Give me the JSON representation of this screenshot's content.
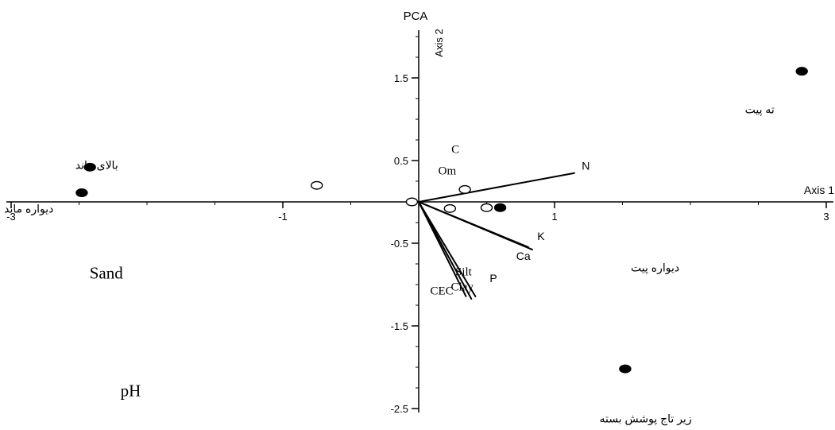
{
  "chart_data": {
    "type": "scatter",
    "title": "PCA",
    "xlabel": "Axis 1",
    "ylabel": "Axis 2",
    "xlim": [
      -3.1,
      3.05
    ],
    "ylim": [
      -2.6,
      2.05
    ],
    "x_ticks": [
      {
        "value": -3,
        "label": "-3"
      },
      {
        "value": -1,
        "label": "-1"
      },
      {
        "value": 1,
        "label": "1"
      },
      {
        "value": 3,
        "label": "3"
      }
    ],
    "y_ticks": [
      {
        "value": 1.5,
        "label": "1.5"
      },
      {
        "value": 0.5,
        "label": "0.5"
      },
      {
        "value": -0.5,
        "label": "-0.5"
      },
      {
        "value": -1.5,
        "label": "-1.5"
      },
      {
        "value": -2.5,
        "label": "-2.5"
      }
    ],
    "series": [
      {
        "marker": "filled",
        "points": [
          {
            "x": -2.42,
            "y": 0.42
          },
          {
            "x": -2.48,
            "y": 0.11
          },
          {
            "x": 2.82,
            "y": 1.58
          },
          {
            "x": 0.6,
            "y": -0.07
          },
          {
            "x": 1.52,
            "y": -2.02
          }
        ]
      },
      {
        "marker": "open",
        "points": [
          {
            "x": -0.75,
            "y": 0.2
          },
          {
            "x": -0.05,
            "y": 0.0
          },
          {
            "x": 0.34,
            "y": 0.15
          },
          {
            "x": 0.23,
            "y": -0.08
          },
          {
            "x": 0.5,
            "y": -0.07
          }
        ]
      }
    ],
    "vectors": [
      {
        "x": 1.15,
        "y": 0.35
      },
      {
        "x": 0.81,
        "y": -0.55
      },
      {
        "x": 0.84,
        "y": -0.58
      },
      {
        "x": 0.39,
        "y": -1.18
      },
      {
        "x": 0.35,
        "y": -1.15
      },
      {
        "x": 0.42,
        "y": -1.15
      }
    ],
    "variable_labels": [
      {
        "text": "N",
        "x": 1.23,
        "y": 0.39,
        "font": "sans"
      },
      {
        "text": "K",
        "x": 0.9,
        "y": -0.46,
        "font": "sans"
      },
      {
        "text": "Ca",
        "x": 0.77,
        "y": -0.7,
        "font": "sans"
      },
      {
        "text": "P",
        "x": 0.55,
        "y": -0.97,
        "font": "sans"
      },
      {
        "text": "C",
        "x": 0.27,
        "y": 0.59,
        "font": "serif"
      },
      {
        "text": "Om",
        "x": 0.21,
        "y": 0.33,
        "font": "serif"
      },
      {
        "text": "Silt",
        "x": 0.33,
        "y": -0.89,
        "font": "serif"
      },
      {
        "text": "Clay",
        "x": 0.32,
        "y": -1.07,
        "font": "serif"
      },
      {
        "text": "CEC",
        "x": 0.17,
        "y": -1.12,
        "font": "serif"
      },
      {
        "text": "Sand",
        "x": -2.3,
        "y": -0.93,
        "font": "serif"
      },
      {
        "text": "pH",
        "x": -2.12,
        "y": -2.35,
        "font": "serif"
      }
    ],
    "site_labels": [
      {
        "text": "بالای ماند",
        "x": -2.37,
        "y": 0.4
      },
      {
        "text": "دیواره ماند",
        "x": -2.87,
        "y": -0.13
      },
      {
        "text": "ته پیت",
        "x": 2.51,
        "y": 1.07
      },
      {
        "text": "دیواره پیت",
        "x": 1.74,
        "y": -0.84
      },
      {
        "text": "زیر تاج پوشش بسته",
        "x": 1.67,
        "y": -2.67
      }
    ]
  }
}
